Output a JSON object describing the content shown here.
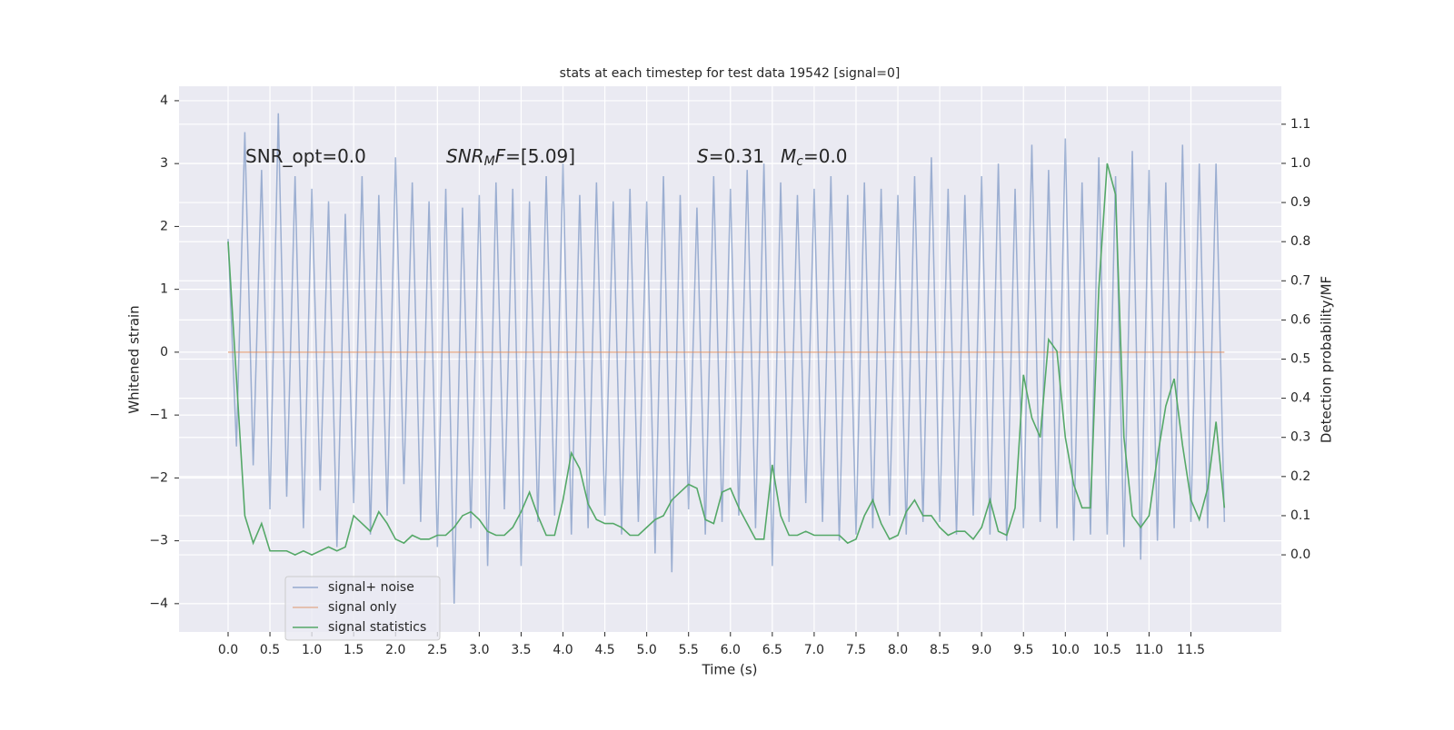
{
  "chart_data": {
    "type": "line",
    "title": "stats at each timestep for test data 19542 [signal=0]",
    "xlabel": "Time (s)",
    "ylabel": "Whitened strain",
    "y2label": "Detection probability/MF",
    "annotations": [
      {
        "parts": [
          {
            "text": "SNR_opt=0.0"
          }
        ]
      },
      {
        "parts": [
          {
            "text": "SNR",
            "italic": true
          },
          {
            "text": "M",
            "italic": true,
            "sub": true
          },
          {
            "text": "F",
            "italic": true
          },
          {
            "text": "=[5.09]"
          }
        ]
      },
      {
        "parts": [
          {
            "text": "S",
            "italic": true
          },
          {
            "text": "=0.31"
          }
        ]
      },
      {
        "parts": [
          {
            "text": "M",
            "italic": true
          },
          {
            "text": "c",
            "italic": true,
            "sub": true
          },
          {
            "text": "=0.0"
          }
        ]
      }
    ],
    "x": [
      0.0,
      0.1,
      0.2,
      0.3,
      0.4,
      0.5,
      0.6,
      0.7,
      0.8,
      0.9,
      1.0,
      1.1,
      1.2,
      1.3,
      1.4,
      1.5,
      1.6,
      1.7,
      1.8,
      1.9,
      2.0,
      2.1,
      2.2,
      2.3,
      2.4,
      2.5,
      2.6,
      2.7,
      2.8,
      2.9,
      3.0,
      3.1,
      3.2,
      3.3,
      3.4,
      3.5,
      3.6,
      3.7,
      3.8,
      3.9,
      4.0,
      4.1,
      4.2,
      4.3,
      4.4,
      4.5,
      4.6,
      4.7,
      4.8,
      4.9,
      5.0,
      5.1,
      5.2,
      5.3,
      5.4,
      5.5,
      5.6,
      5.7,
      5.8,
      5.9,
      6.0,
      6.1,
      6.2,
      6.3,
      6.4,
      6.5,
      6.6,
      6.7,
      6.8,
      6.9,
      7.0,
      7.1,
      7.2,
      7.3,
      7.4,
      7.5,
      7.6,
      7.7,
      7.8,
      7.9,
      8.0,
      8.1,
      8.2,
      8.3,
      8.4,
      8.5,
      8.6,
      8.7,
      8.8,
      8.9,
      9.0,
      9.1,
      9.2,
      9.3,
      9.4,
      9.5,
      9.6,
      9.7,
      9.8,
      9.9,
      10.0,
      10.1,
      10.2,
      10.3,
      10.4,
      10.5,
      10.6,
      10.7,
      10.8,
      10.9,
      11.0,
      11.1,
      11.2,
      11.3,
      11.4,
      11.5,
      11.6,
      11.7,
      11.8,
      11.9
    ],
    "series": [
      {
        "name": "signal+ noise",
        "color": "#4c72b0",
        "values": [
          1.8,
          -1.5,
          3.5,
          -1.8,
          2.9,
          -2.5,
          3.8,
          -2.3,
          2.8,
          -2.8,
          2.6,
          -2.2,
          2.4,
          -3.1,
          2.2,
          -2.4,
          2.8,
          -2.9,
          2.5,
          -2.6,
          3.1,
          -2.1,
          2.7,
          -2.7,
          2.4,
          -3.1,
          2.6,
          -4.0,
          2.3,
          -2.8,
          2.5,
          -3.4,
          2.7,
          -2.5,
          2.6,
          -3.4,
          2.4,
          -2.7,
          2.8,
          -2.6,
          3.0,
          -2.9,
          2.5,
          -2.8,
          2.7,
          -2.6,
          2.4,
          -2.9,
          2.6,
          -2.7,
          2.4,
          -3.2,
          2.8,
          -3.5,
          2.5,
          -2.5,
          2.3,
          -2.9,
          2.8,
          -2.7,
          2.6,
          -2.6,
          2.9,
          -2.8,
          3.0,
          -3.4,
          2.7,
          -2.7,
          2.5,
          -2.4,
          2.6,
          -2.7,
          2.8,
          -3.0,
          2.5,
          -2.9,
          2.7,
          -2.8,
          2.6,
          -2.6,
          2.5,
          -2.9,
          2.8,
          -2.7,
          3.1,
          -2.7,
          2.6,
          -2.9,
          2.5,
          -2.6,
          2.8,
          -2.9,
          3.0,
          -3.0,
          2.6,
          -2.8,
          3.3,
          -2.7,
          2.9,
          -2.8,
          3.4,
          -3.0,
          2.7,
          -2.9,
          3.1,
          -2.9,
          2.8,
          -3.1,
          3.2,
          -3.3,
          2.9,
          -3.0,
          2.7,
          -2.8,
          3.3,
          -2.7,
          3.0,
          -2.8,
          3.0,
          -2.7
        ]
      },
      {
        "name": "signal only",
        "color": "#dd8452",
        "values": [
          0,
          0,
          0,
          0,
          0,
          0,
          0,
          0,
          0,
          0,
          0,
          0,
          0,
          0,
          0,
          0,
          0,
          0,
          0,
          0,
          0,
          0,
          0,
          0,
          0,
          0,
          0,
          0,
          0,
          0,
          0,
          0,
          0,
          0,
          0,
          0,
          0,
          0,
          0,
          0,
          0,
          0,
          0,
          0,
          0,
          0,
          0,
          0,
          0,
          0,
          0,
          0,
          0,
          0,
          0,
          0,
          0,
          0,
          0,
          0,
          0,
          0,
          0,
          0,
          0,
          0,
          0,
          0,
          0,
          0,
          0,
          0,
          0,
          0,
          0,
          0,
          0,
          0,
          0,
          0,
          0,
          0,
          0,
          0,
          0,
          0,
          0,
          0,
          0,
          0,
          0,
          0,
          0,
          0,
          0,
          0,
          0,
          0,
          0,
          0,
          0,
          0,
          0,
          0,
          0,
          0,
          0,
          0,
          0,
          0,
          0,
          0,
          0,
          0,
          0,
          0,
          0,
          0,
          0,
          0
        ]
      },
      {
        "name": "signal statistics",
        "color": "#55a868",
        "axis": "y2",
        "values": [
          0.8,
          0.45,
          0.1,
          0.03,
          0.08,
          0.01,
          0.01,
          0.01,
          0.0,
          0.01,
          0.0,
          0.01,
          0.02,
          0.01,
          0.02,
          0.1,
          0.08,
          0.06,
          0.11,
          0.08,
          0.04,
          0.03,
          0.05,
          0.04,
          0.04,
          0.05,
          0.05,
          0.07,
          0.1,
          0.11,
          0.09,
          0.06,
          0.05,
          0.05,
          0.07,
          0.11,
          0.16,
          0.1,
          0.05,
          0.05,
          0.14,
          0.26,
          0.22,
          0.13,
          0.09,
          0.08,
          0.08,
          0.07,
          0.05,
          0.05,
          0.07,
          0.09,
          0.1,
          0.14,
          0.16,
          0.18,
          0.17,
          0.09,
          0.08,
          0.16,
          0.17,
          0.12,
          0.08,
          0.04,
          0.04,
          0.23,
          0.1,
          0.05,
          0.05,
          0.06,
          0.05,
          0.05,
          0.05,
          0.05,
          0.03,
          0.04,
          0.1,
          0.14,
          0.08,
          0.04,
          0.05,
          0.11,
          0.14,
          0.1,
          0.1,
          0.07,
          0.05,
          0.06,
          0.06,
          0.04,
          0.07,
          0.14,
          0.06,
          0.05,
          0.12,
          0.46,
          0.35,
          0.3,
          0.55,
          0.52,
          0.3,
          0.18,
          0.12,
          0.12,
          0.68,
          1.0,
          0.92,
          0.3,
          0.1,
          0.07,
          0.1,
          0.25,
          0.38,
          0.45,
          0.28,
          0.14,
          0.09,
          0.17,
          0.34,
          0.12
        ]
      }
    ],
    "xlim": [
      -0.586,
      12.58
    ],
    "xticks": [
      {
        "value": 0,
        "label": "0.0"
      },
      0.5,
      {
        "value": 1,
        "label": "1.0"
      },
      1.5,
      {
        "value": 2,
        "label": "2.0"
      },
      2.5,
      {
        "value": 3,
        "label": "3.0"
      },
      3.5,
      {
        "value": 4,
        "label": "4.0"
      },
      4.5,
      {
        "value": 5,
        "label": "5.0"
      },
      5.5,
      {
        "value": 6,
        "label": "6.0"
      },
      6.5,
      {
        "value": 7,
        "label": "7.0"
      },
      7.5,
      {
        "value": 8,
        "label": "8.0"
      },
      8.5,
      {
        "value": 9,
        "label": "9.0"
      },
      9.5,
      {
        "value": 10,
        "label": "10.0"
      },
      10.5,
      {
        "value": 11,
        "label": "11.0"
      },
      11.5
    ],
    "ylim": [
      -4.45,
      4.23
    ],
    "yticks": [
      {
        "value": -4,
        "label": "−4"
      },
      {
        "value": -3,
        "label": "−3"
      },
      {
        "value": -2,
        "label": "−2"
      },
      {
        "value": -1,
        "label": "−1"
      },
      0,
      1,
      2,
      3,
      4
    ],
    "y2lim": [
      -0.197,
      1.197
    ],
    "y2ticks": [
      {
        "value": 0,
        "label": "0.0"
      },
      0.1,
      0.2,
      0.3,
      0.4,
      0.5,
      0.6,
      0.7,
      0.8,
      0.9,
      {
        "value": 1,
        "label": "1.0"
      },
      1.1
    ],
    "grid": true,
    "legend": "lower left"
  }
}
